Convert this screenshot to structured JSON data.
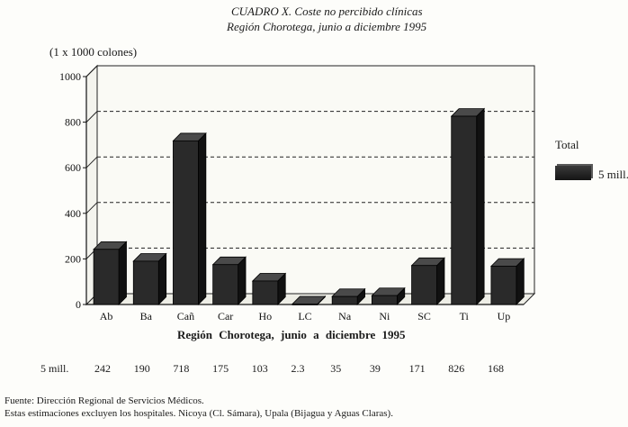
{
  "title": "CUADRO X. Coste no percibido clínicas",
  "subtitle": "Región Chorotega, junio a diciembre 1995",
  "chart_data": {
    "type": "bar",
    "ylabel": "(1 x 1000 colones)",
    "xlabel": "Región Chorotega, junio a diciembre 1995",
    "categories": [
      "Ab",
      "Ba",
      "Cañ",
      "Car",
      "Ho",
      "LC",
      "Na",
      "Ni",
      "SC",
      "Ti",
      "Up"
    ],
    "series": [
      {
        "name": "5 mill.",
        "values": [
          242,
          190,
          718,
          175,
          103,
          2.3,
          35,
          39,
          171,
          826,
          168
        ]
      }
    ],
    "ylim": [
      0,
      1000
    ],
    "yticks": [
      0,
      200,
      400,
      600,
      800,
      1000
    ],
    "legend": {
      "title": "Total",
      "position": "right"
    },
    "grid": true,
    "three_d": true
  },
  "table": {
    "row_label": "5 mill.",
    "values": [
      "242",
      "190",
      "718",
      "175",
      "103",
      "2.3",
      "35",
      "39",
      "171",
      "826",
      "168"
    ]
  },
  "footnotes": [
    "Fuente: Dirección Regional de Servicios Médicos.",
    "Estas estimaciones excluyen los hospitales. Nicoya (Cl. Sámara), Upala (Bijagua y Aguas Claras)."
  ]
}
